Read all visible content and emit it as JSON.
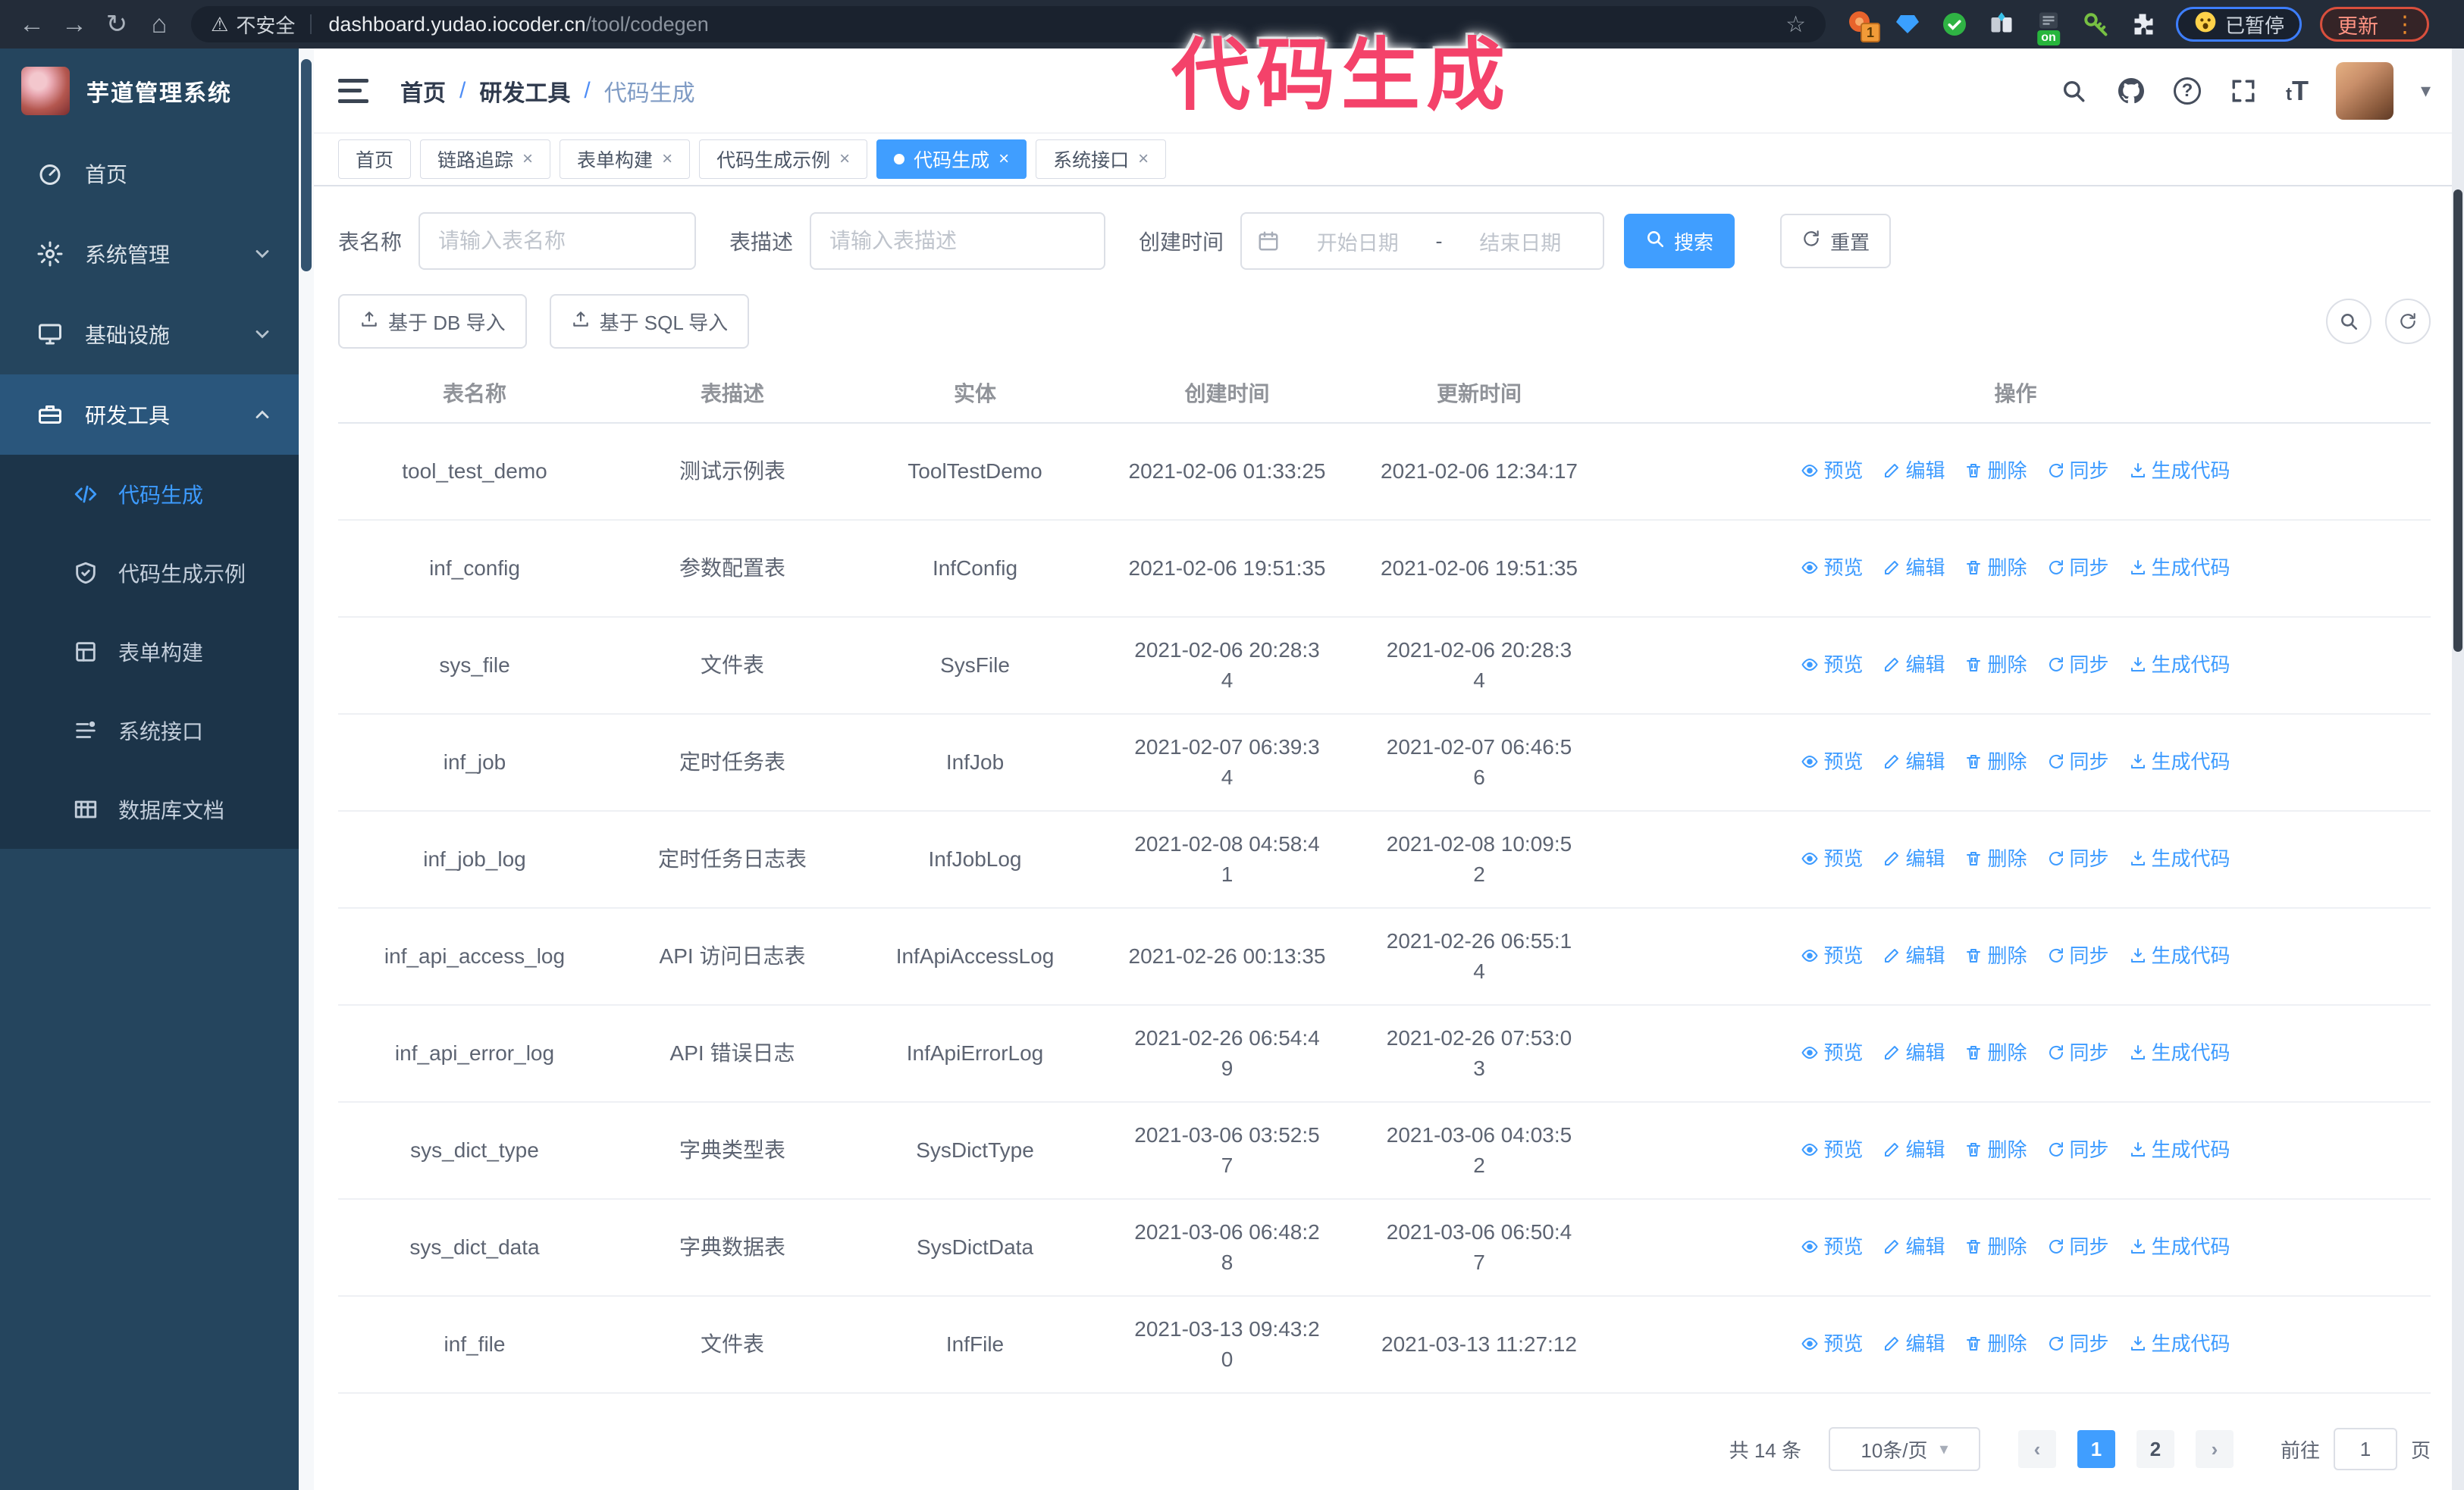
{
  "browser": {
    "security_warning": "不安全",
    "url_host": "dashboard.yudao.iocoder.cn",
    "url_path": "/tool/codegen",
    "extension_badge": "1",
    "extension_on_badge": "on",
    "paused_chip": "已暂停",
    "update_chip": "更新"
  },
  "annotation": {
    "text": "代码生成",
    "color": "#f4426a"
  },
  "icons": {
    "back": "←",
    "forward": "→",
    "reload": "↻",
    "home": "⌂",
    "warning": "⚠",
    "star": "☆",
    "menu_dots": "⋮",
    "caret_down": "▾",
    "close": "×",
    "help": "?",
    "font_small": "t",
    "font_big": "T",
    "separator": "/",
    "range_dash": "-"
  },
  "sidebar": {
    "title": "芋道管理系统",
    "items": [
      {
        "label": "首页",
        "icon": "dashboard-icon"
      },
      {
        "label": "系统管理",
        "icon": "gear-icon",
        "expand": "down"
      },
      {
        "label": "基础设施",
        "icon": "monitor-icon",
        "expand": "down"
      },
      {
        "label": "研发工具",
        "icon": "toolbox-icon",
        "expand": "up",
        "open": true
      }
    ],
    "submenu": [
      {
        "label": "代码生成",
        "icon": "code-icon",
        "active": true
      },
      {
        "label": "代码生成示例",
        "icon": "shield-icon"
      },
      {
        "label": "表单构建",
        "icon": "grid-icon"
      },
      {
        "label": "系统接口",
        "icon": "list-icon"
      },
      {
        "label": "数据库文档",
        "icon": "dbtable-icon"
      }
    ]
  },
  "header": {
    "breadcrumb": [
      "首页",
      "研发工具",
      "代码生成"
    ]
  },
  "tabs": [
    {
      "label": "首页",
      "closable": false,
      "active": false
    },
    {
      "label": "链路追踪",
      "closable": true,
      "active": false
    },
    {
      "label": "表单构建",
      "closable": true,
      "active": false
    },
    {
      "label": "代码生成示例",
      "closable": true,
      "active": false
    },
    {
      "label": "代码生成",
      "closable": true,
      "active": true
    },
    {
      "label": "系统接口",
      "closable": true,
      "active": false
    }
  ],
  "filters": {
    "name_label": "表名称",
    "name_placeholder": "请输入表名称",
    "desc_label": "表描述",
    "desc_placeholder": "请输入表描述",
    "time_label": "创建时间",
    "start_placeholder": "开始日期",
    "end_placeholder": "结束日期",
    "search_button": "搜索",
    "reset_button": "重置"
  },
  "toolbar": {
    "import_db": "基于 DB 导入",
    "import_sql": "基于 SQL 导入"
  },
  "table": {
    "columns": [
      "表名称",
      "表描述",
      "实体",
      "创建时间",
      "更新时间",
      "操作"
    ],
    "actions": [
      {
        "label": "预览",
        "icon": "eye-icon"
      },
      {
        "label": "编辑",
        "icon": "edit-icon"
      },
      {
        "label": "删除",
        "icon": "trash-icon"
      },
      {
        "label": "同步",
        "icon": "sync-icon"
      },
      {
        "label": "生成代码",
        "icon": "download-icon"
      }
    ],
    "rows": [
      {
        "name": "tool_test_demo",
        "desc": "测试示例表",
        "entity": "ToolTestDemo",
        "created": "2021-02-06 01:33:25",
        "updated": "2021-02-06 12:34:17"
      },
      {
        "name": "inf_config",
        "desc": "参数配置表",
        "entity": "InfConfig",
        "created": "2021-02-06 19:51:35",
        "updated": "2021-02-06 19:51:35"
      },
      {
        "name": "sys_file",
        "desc": "文件表",
        "entity": "SysFile",
        "created": "2021-02-06 20:28:3\n4",
        "updated": "2021-02-06 20:28:3\n4"
      },
      {
        "name": "inf_job",
        "desc": "定时任务表",
        "entity": "InfJob",
        "created": "2021-02-07 06:39:3\n4",
        "updated": "2021-02-07 06:46:5\n6"
      },
      {
        "name": "inf_job_log",
        "desc": "定时任务日志表",
        "entity": "InfJobLog",
        "created": "2021-02-08 04:58:4\n1",
        "updated": "2021-02-08 10:09:5\n2"
      },
      {
        "name": "inf_api_access_log",
        "desc": "API 访问日志表",
        "entity": "InfApiAccessLog",
        "created": "2021-02-26 00:13:35",
        "updated": "2021-02-26 06:55:1\n4"
      },
      {
        "name": "inf_api_error_log",
        "desc": "API 错误日志",
        "entity": "InfApiErrorLog",
        "created": "2021-02-26 06:54:4\n9",
        "updated": "2021-02-26 07:53:0\n3"
      },
      {
        "name": "sys_dict_type",
        "desc": "字典类型表",
        "entity": "SysDictType",
        "created": "2021-03-06 03:52:5\n7",
        "updated": "2021-03-06 04:03:5\n2"
      },
      {
        "name": "sys_dict_data",
        "desc": "字典数据表",
        "entity": "SysDictData",
        "created": "2021-03-06 06:48:2\n8",
        "updated": "2021-03-06 06:50:4\n7"
      },
      {
        "name": "inf_file",
        "desc": "文件表",
        "entity": "InfFile",
        "created": "2021-03-13 09:43:2\n0",
        "updated": "2021-03-13 11:27:12"
      }
    ]
  },
  "pagination": {
    "total": "共 14 条",
    "page_size": "10条/页",
    "pages": [
      "1",
      "2"
    ],
    "active_page": "1",
    "goto_label": "前往",
    "goto_value": "1",
    "goto_suffix": "页"
  }
}
